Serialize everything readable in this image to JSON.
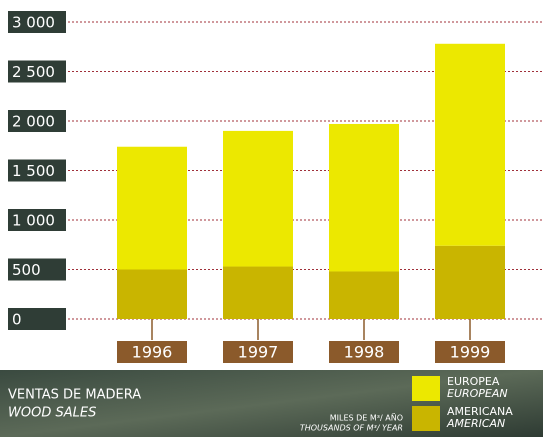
{
  "chart_data": {
    "type": "stacked_bar",
    "title": "VENTAS DE MADERA",
    "subtitle": "WOOD SALES",
    "unit_label": "MILES DE M³/ AÑO",
    "unit_label_alt": "THOUSANDS OF M³/ YEAR",
    "categories": [
      "1996",
      "1997",
      "1998",
      "1999"
    ],
    "series": [
      {
        "name": "EUROPEA",
        "name_alt": "EUROPEAN",
        "color": "#ece800",
        "values": [
          1240,
          1370,
          1490,
          2040
        ]
      },
      {
        "name": "AMERICANA",
        "name_alt": "AMERICAN",
        "color": "#c9b500",
        "values": [
          500,
          530,
          480,
          740
        ]
      }
    ],
    "ylim": [
      0,
      3000
    ],
    "yticks": [
      0,
      500,
      {
        "value": 1000,
        "label": "1 000"
      },
      {
        "value": 1500,
        "label": "1 500"
      },
      {
        "value": 2000,
        "label": "2 000"
      },
      {
        "value": 2500,
        "label": "2 500"
      },
      {
        "value": 3000,
        "label": "3 000"
      }
    ],
    "grid": true
  }
}
